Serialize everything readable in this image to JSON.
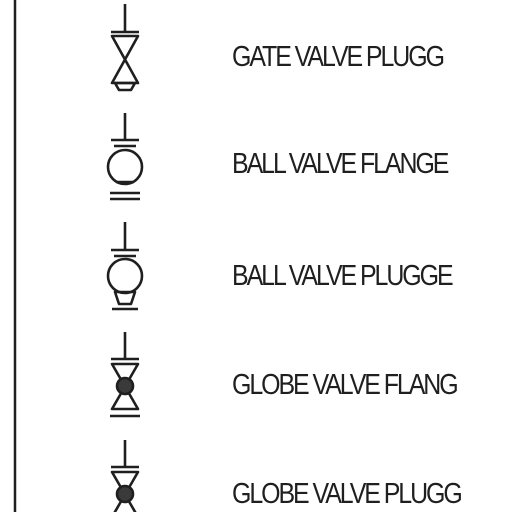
{
  "legend": {
    "items": [
      {
        "id": "gate-valve-plugged",
        "symbol": "gate-valve-plugged-icon",
        "label": "GATE VALVE  PLUGG"
      },
      {
        "id": "ball-valve-flanged",
        "symbol": "ball-valve-flanged-icon",
        "label": "BALL VALVE FLANGE"
      },
      {
        "id": "ball-valve-plugged",
        "symbol": "ball-valve-plugged-icon",
        "label": "BALL VALVE PLUGGE"
      },
      {
        "id": "globe-valve-flanged",
        "symbol": "globe-valve-flanged-icon",
        "label": "GLOBE VALVE FLANG"
      },
      {
        "id": "globe-valve-plugged",
        "symbol": "globe-valve-plugged-icon",
        "label": "GLOBE VALVE PLUGG"
      }
    ]
  },
  "colors": {
    "ink": "#1f1f1f",
    "fill_dark": "#3a3a3a",
    "background": "#ffffff"
  }
}
